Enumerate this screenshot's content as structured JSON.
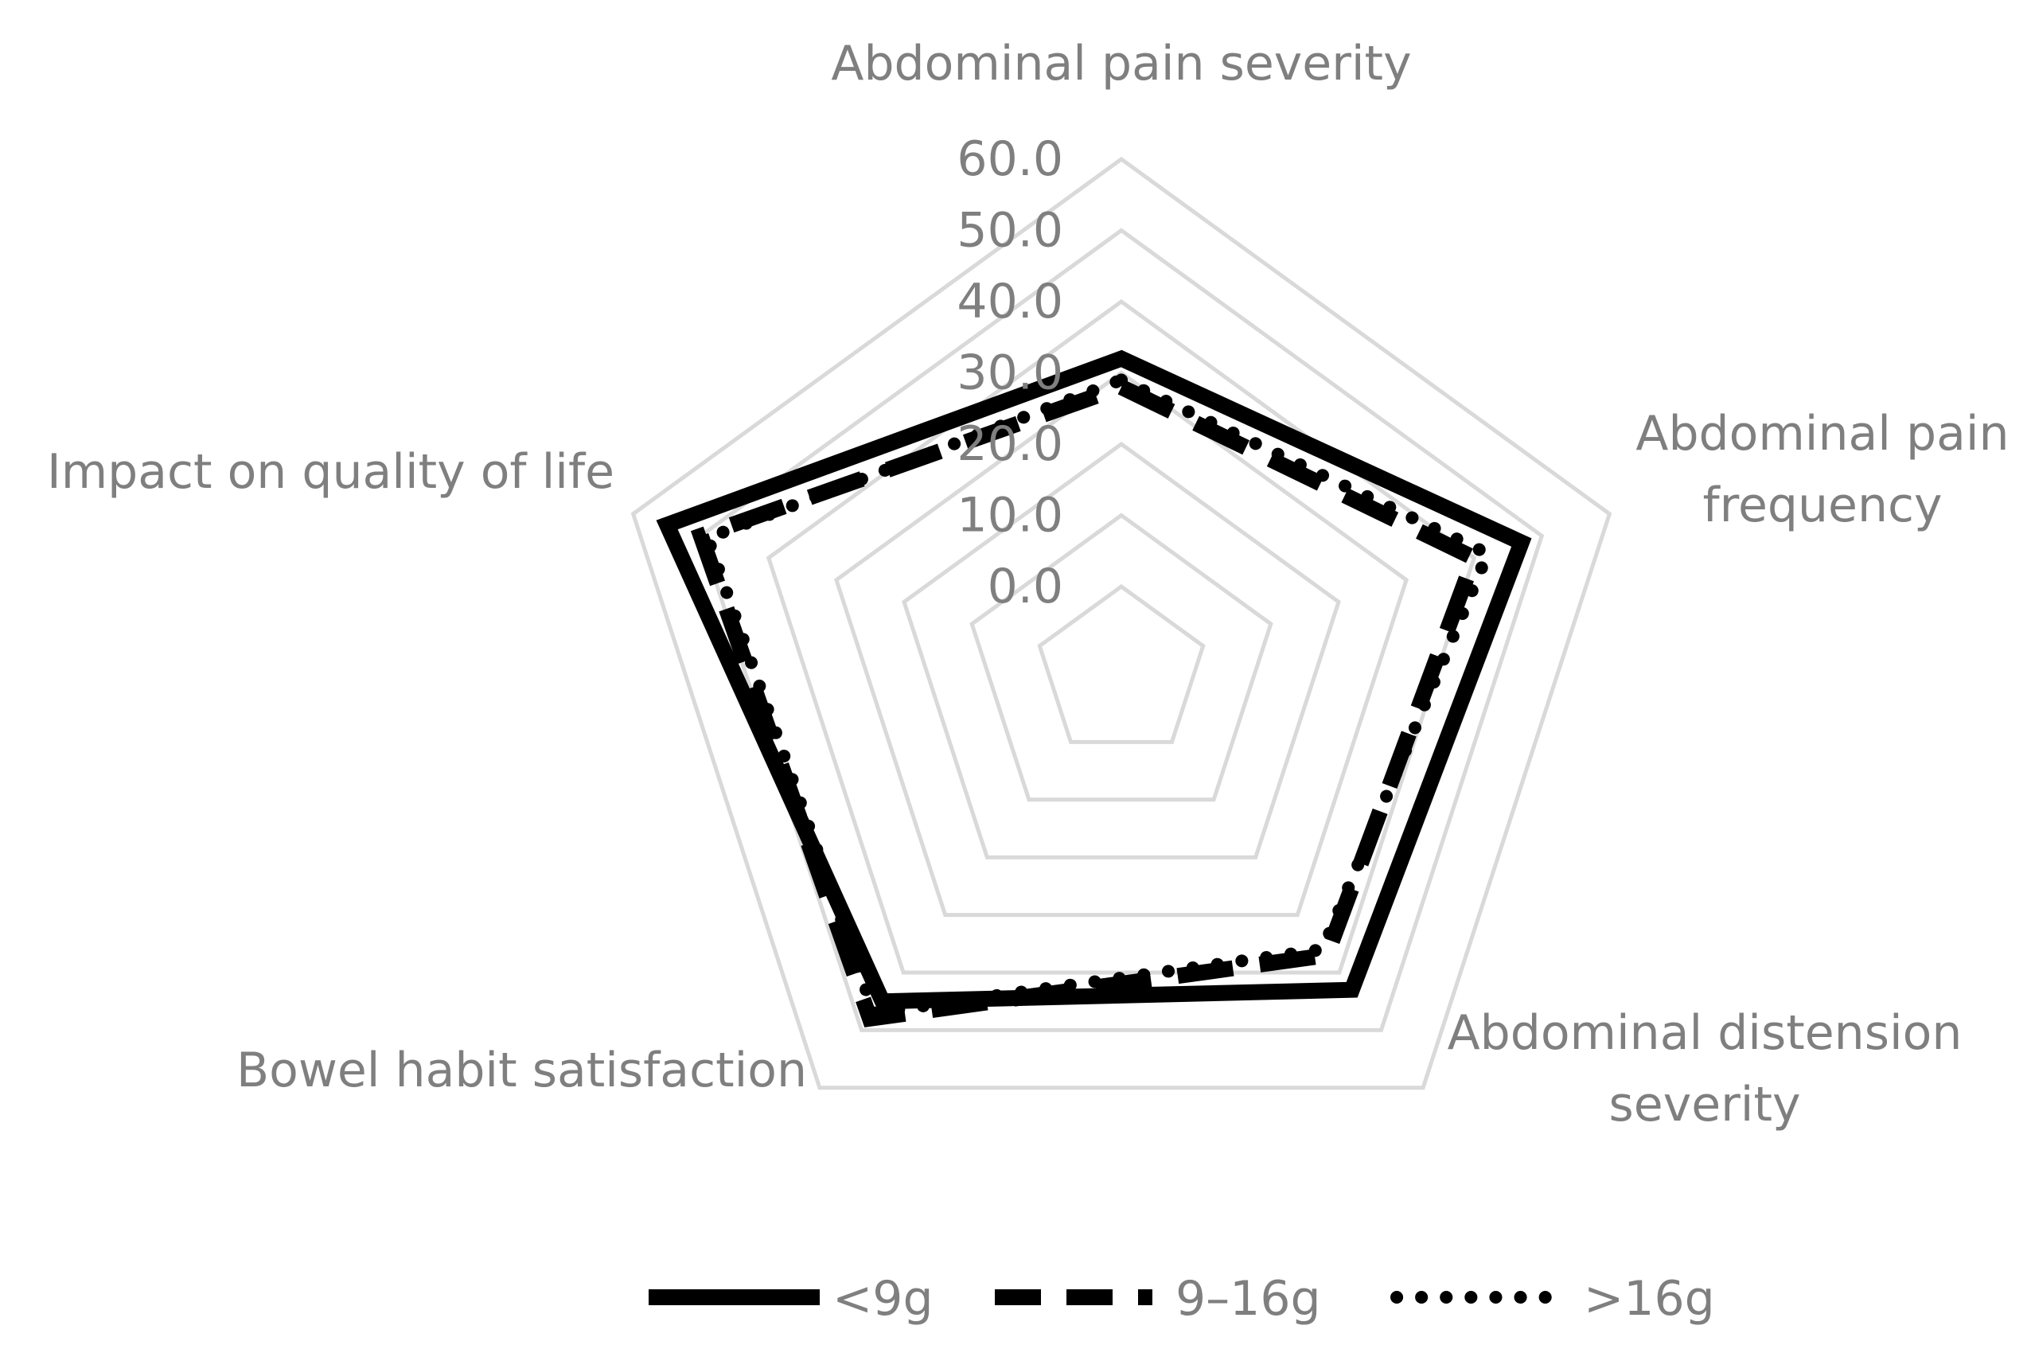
{
  "chart_data": {
    "type": "radar",
    "title": "",
    "axes": [
      "Abdominal pain severity",
      "Abdominal pain frequency",
      "Abdominal distension severity",
      "Bowel habit satisfaction",
      "Impact on quality of life"
    ],
    "axis_label_lines": [
      [
        "Abdominal pain severity"
      ],
      [
        "Abdominal pain",
        "frequency"
      ],
      [
        "Abdominal distension",
        "severity"
      ],
      [
        "Bowel habit satisfaction"
      ],
      [
        "Impact on quality of life"
      ]
    ],
    "rmin": 0,
    "rmax": 60,
    "ticks": [
      "0.0",
      "10.0",
      "20.0",
      "30.0",
      "40.0",
      "50.0",
      "60.0"
    ],
    "tick_values": [
      0,
      10,
      20,
      30,
      40,
      50,
      60
    ],
    "series": [
      {
        "name": "<9g",
        "style": "solid",
        "values": [
          32,
          47,
          43,
          45,
          55
        ]
      },
      {
        "name": "9–16g",
        "style": "dashed",
        "values": [
          28,
          40,
          37,
          48,
          50
        ]
      },
      {
        "name": ">16g",
        "style": "dotted",
        "values": [
          29,
          42,
          36,
          47,
          49
        ]
      }
    ],
    "legend_position": "bottom",
    "colors": {
      "series": "#000000",
      "grid": "#d9d9d9",
      "text": "#7f7f7f"
    }
  }
}
